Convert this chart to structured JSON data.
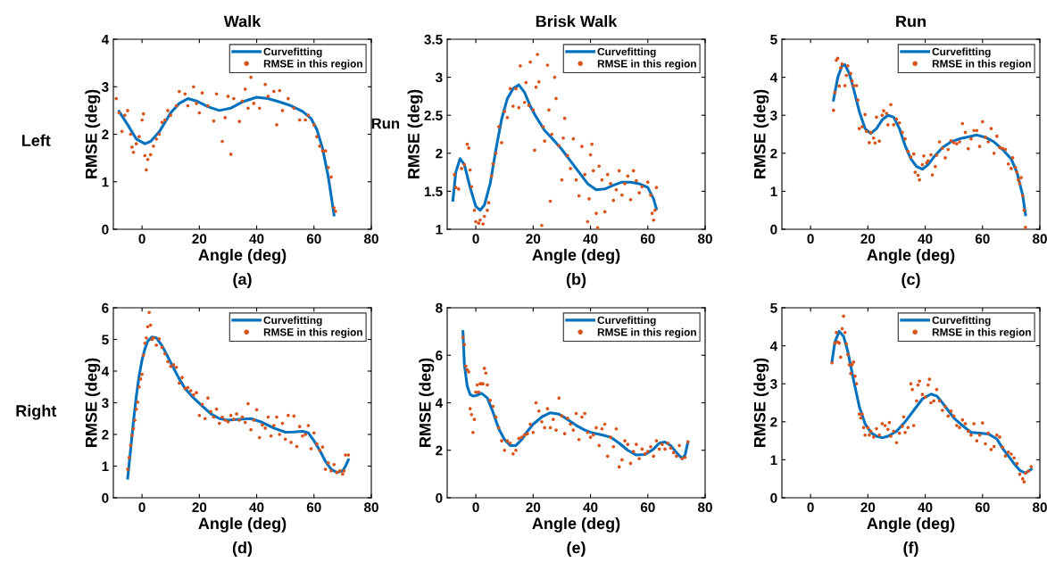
{
  "chart_data": [
    {
      "type": "scatter",
      "title": "Walk",
      "xlabel": "Angle (deg)",
      "ylabel": "RMSE (deg)",
      "xlim": [
        -10,
        80
      ],
      "xticks": [
        0,
        20,
        40,
        60,
        80
      ],
      "ylim": [
        0,
        4
      ],
      "yticks": [
        0,
        1,
        2,
        3,
        4
      ],
      "legend": "top right",
      "grid": false,
      "annotations": [
        "Left",
        "Run",
        "(a)"
      ],
      "series": [
        {
          "name": "Curvefitting",
          "type": "line",
          "color": "#0072bd",
          "marker": "none",
          "line_style": "solid",
          "x": [
            -8,
            -5,
            -2,
            1,
            3,
            6,
            10,
            13,
            16,
            19,
            23,
            27,
            31,
            35,
            40,
            44,
            48,
            52,
            56,
            59,
            61,
            63,
            65,
            67
          ],
          "values": [
            2.48,
            2.2,
            1.9,
            1.8,
            1.85,
            2.05,
            2.45,
            2.65,
            2.75,
            2.7,
            2.58,
            2.5,
            2.55,
            2.68,
            2.78,
            2.75,
            2.68,
            2.6,
            2.48,
            2.33,
            2.1,
            1.7,
            1.1,
            0.3
          ]
        },
        {
          "name": "RMSE in this region",
          "type": "scatter",
          "color": "#d95319",
          "marker": "circle",
          "x": [
            -9,
            -8,
            -7,
            -6,
            -5,
            -4,
            -3.5,
            -3,
            -2,
            -1,
            0,
            0.5,
            1,
            1.5,
            2,
            3,
            4,
            5,
            6,
            7,
            8,
            9,
            10,
            12,
            13,
            15,
            16,
            18,
            19,
            20,
            21,
            23,
            25,
            26,
            28,
            29,
            30,
            31,
            32,
            34,
            35,
            36,
            37,
            38,
            39,
            41,
            43,
            44,
            46,
            47,
            48,
            49,
            51,
            53,
            55,
            57,
            58,
            60,
            61,
            62,
            63,
            64,
            65,
            66,
            67,
            67.5
          ],
          "values": [
            2.75,
            2.45,
            2.06,
            2.4,
            2.5,
            2.0,
            1.73,
            1.62,
            1.8,
            1.95,
            2.3,
            2.43,
            1.55,
            1.25,
            1.47,
            1.57,
            1.75,
            1.9,
            2.0,
            2.25,
            2.3,
            2.5,
            2.4,
            2.6,
            2.9,
            2.85,
            2.6,
            3.0,
            2.65,
            2.45,
            2.87,
            2.6,
            2.28,
            2.85,
            1.85,
            2.35,
            2.8,
            1.58,
            2.75,
            2.27,
            2.7,
            2.95,
            2.55,
            3.2,
            2.65,
            2.55,
            3.05,
            2.8,
            2.9,
            2.2,
            2.92,
            2.5,
            2.75,
            2.55,
            2.3,
            2.3,
            2.4,
            2.2,
            1.95,
            1.75,
            1.65,
            1.65,
            1.3,
            1.1,
            0.45,
            0.38
          ]
        }
      ]
    },
    {
      "type": "scatter",
      "title": "Brisk Walk",
      "xlabel": "Angle (deg)",
      "ylabel": "RMSE (deg)",
      "xlim": [
        -10,
        80
      ],
      "xticks": [
        0,
        20,
        40,
        60,
        80
      ],
      "ylim": [
        1,
        3.5
      ],
      "yticks": [
        1,
        1.5,
        2,
        2.5,
        3,
        3.5
      ],
      "legend": "top right",
      "grid": false,
      "annotations": [
        "(b)"
      ],
      "series": [
        {
          "name": "Curvefitting",
          "type": "line",
          "color": "#0072bd",
          "marker": "none",
          "line_style": "solid",
          "x": [
            -8,
            -7,
            -5.5,
            -4,
            -2,
            0,
            1.5,
            3,
            5,
            7,
            9,
            11,
            13,
            15,
            17,
            19,
            21,
            24,
            27,
            30,
            33,
            36,
            39,
            42,
            45,
            48,
            51,
            54,
            57,
            60,
            62,
            63
          ],
          "values": [
            1.38,
            1.75,
            1.93,
            1.85,
            1.55,
            1.3,
            1.25,
            1.32,
            1.6,
            2.05,
            2.45,
            2.72,
            2.85,
            2.9,
            2.8,
            2.62,
            2.48,
            2.3,
            2.18,
            2.05,
            1.9,
            1.75,
            1.6,
            1.52,
            1.53,
            1.58,
            1.62,
            1.62,
            1.6,
            1.55,
            1.4,
            1.27
          ]
        },
        {
          "name": "RMSE in this region",
          "type": "scatter",
          "color": "#d95319",
          "marker": "circle",
          "x": [
            -7.5,
            -7,
            -6,
            -5,
            -4,
            -3,
            -2.5,
            -2,
            -1.5,
            -0.5,
            0,
            1,
            1.5,
            2.5,
            3,
            4,
            4.5,
            5.5,
            6,
            7,
            8,
            9,
            10,
            11,
            12,
            13,
            14,
            15,
            15.5,
            17,
            17.5,
            18.5,
            19,
            20,
            20.5,
            21,
            21.5,
            22,
            23,
            23.5,
            24,
            25,
            25.5,
            26,
            26.5,
            27.5,
            28,
            29,
            30,
            30.5,
            31,
            32,
            33,
            34,
            35,
            36,
            37,
            38,
            39,
            39.5,
            40,
            40.5,
            41,
            42,
            42.5,
            43,
            44,
            45,
            46,
            47,
            48,
            49,
            50,
            51,
            52,
            53,
            54,
            55,
            56,
            57,
            58,
            60,
            61,
            61.5,
            62,
            62.5,
            63
          ],
          "values": [
            1.72,
            1.55,
            1.53,
            1.8,
            1.85,
            2.12,
            2.07,
            1.78,
            1.56,
            1.25,
            1.1,
            1.08,
            1.12,
            1.07,
            1.17,
            1.25,
            1.35,
            1.7,
            1.86,
            2.0,
            2.35,
            2.14,
            2.55,
            2.47,
            2.85,
            2.62,
            2.85,
            2.6,
            3.15,
            2.67,
            2.93,
            2.63,
            3.2,
            2.57,
            2.04,
            2.87,
            3.3,
            2.94,
            1.05,
            2.35,
            2.16,
            3.16,
            2.57,
            1.37,
            2.25,
            3.0,
            2.72,
            2.1,
            1.65,
            2.2,
            2.46,
            1.97,
            1.8,
            2.19,
            1.65,
            1.44,
            2.09,
            1.72,
            1.1,
            1.4,
            1.98,
            2.12,
            1.77,
            1.21,
            1.02,
            1.83,
            1.65,
            1.23,
            1.72,
            1.6,
            1.38,
            1.52,
            1.77,
            1.45,
            1.6,
            1.7,
            1.39,
            1.77,
            1.64,
            1.48,
            1.56,
            1.62,
            1.45,
            1.21,
            1.12,
            1.25,
            1.55
          ]
        }
      ]
    },
    {
      "type": "scatter",
      "title": "Run",
      "xlabel": "Angle (deg)",
      "ylabel": "RMSE (deg)",
      "xlim": [
        -10,
        80
      ],
      "xticks": [
        0,
        20,
        40,
        60,
        80
      ],
      "ylim": [
        0,
        5
      ],
      "yticks": [
        0,
        1,
        2,
        3,
        4,
        5
      ],
      "legend": "top right",
      "grid": false,
      "annotations": [
        "(c)"
      ],
      "series": [
        {
          "name": "Curvefitting",
          "type": "line",
          "color": "#0072bd",
          "marker": "none",
          "line_style": "solid",
          "x": [
            8,
            9.5,
            11,
            12,
            13.5,
            15,
            17,
            19,
            21,
            23,
            25,
            27,
            29,
            31,
            33,
            35,
            37,
            39,
            41,
            43,
            46,
            49,
            52,
            55,
            58,
            61,
            64,
            67,
            70,
            72,
            74,
            75
          ],
          "values": [
            3.4,
            4.0,
            4.3,
            4.33,
            4.1,
            3.7,
            3.1,
            2.65,
            2.52,
            2.65,
            2.88,
            3.0,
            2.95,
            2.65,
            2.2,
            1.85,
            1.65,
            1.58,
            1.7,
            1.9,
            2.15,
            2.3,
            2.38,
            2.43,
            2.48,
            2.42,
            2.3,
            2.1,
            1.85,
            1.5,
            0.9,
            0.38
          ]
        },
        {
          "name": "RMSE in this region",
          "type": "scatter",
          "color": "#d95319",
          "marker": "circle",
          "x": [
            8,
            8.5,
            9,
            9.5,
            10,
            10.5,
            11,
            12,
            12.5,
            13,
            14,
            14.5,
            15,
            16,
            16.5,
            17,
            18,
            19,
            19.5,
            20.5,
            21,
            22,
            22.5,
            23,
            24,
            25,
            25.5,
            26.5,
            27,
            28,
            29,
            30,
            31,
            32,
            33,
            34,
            35,
            36,
            36.5,
            37.5,
            38,
            39,
            39.5,
            40.5,
            41,
            42,
            42.5,
            43.5,
            44,
            45,
            46,
            47,
            48,
            49,
            50,
            51,
            52,
            53,
            54,
            55,
            56,
            57,
            58,
            59,
            60,
            61,
            62,
            63,
            64,
            65,
            66,
            67,
            68,
            69,
            70,
            70.5,
            71.5,
            72,
            72.5,
            73,
            73.5,
            74,
            74.5,
            75
          ],
          "values": [
            3.13,
            3.6,
            4.45,
            4.5,
            3.77,
            4.25,
            4.35,
            3.78,
            4.05,
            4.3,
            4.1,
            3.9,
            3.78,
            3.78,
            3.4,
            2.65,
            2.7,
            3.02,
            2.58,
            2.28,
            2.55,
            2.4,
            2.27,
            2.95,
            2.32,
            3.0,
            3.12,
            3.05,
            2.75,
            3.28,
            2.75,
            2.9,
            2.8,
            2.55,
            2.38,
            2.05,
            1.9,
            1.98,
            1.5,
            1.42,
            1.3,
            1.7,
            1.93,
            1.75,
            1.8,
            1.96,
            1.43,
            1.65,
            1.95,
            2.3,
            2.13,
            1.88,
            2.1,
            2.33,
            2.28,
            2.25,
            2.3,
            2.78,
            2.55,
            2.12,
            2.38,
            2.6,
            2.6,
            2.18,
            2.83,
            2.42,
            2.3,
            2.65,
            2.0,
            2.45,
            2.15,
            2.13,
            2.1,
            1.72,
            1.6,
            1.88,
            1.63,
            1.5,
            1.3,
            1.2,
            1.36,
            0.88,
            0.5,
            0.05
          ]
        }
      ]
    },
    {
      "type": "scatter",
      "xlabel": "Angle (deg)",
      "ylabel": "RMSE (deg)",
      "xlim": [
        -10,
        80
      ],
      "xticks": [
        0,
        20,
        40,
        60,
        80
      ],
      "ylim": [
        0,
        6
      ],
      "yticks": [
        0,
        1,
        2,
        3,
        4,
        5,
        6
      ],
      "legend": "top right",
      "grid": false,
      "annotations": [
        "Right",
        "(d)"
      ],
      "series": [
        {
          "name": "Curvefitting",
          "type": "line",
          "color": "#0072bd",
          "marker": "none",
          "line_style": "solid",
          "x": [
            -5,
            -4,
            -3,
            -2,
            -1,
            0,
            1,
            2,
            3.5,
            5,
            7,
            9,
            11,
            13,
            15,
            18,
            21,
            24,
            27,
            30,
            34,
            38,
            42,
            46,
            50,
            53,
            56,
            58,
            60,
            62,
            64,
            66,
            68,
            70,
            71,
            72
          ],
          "values": [
            0.62,
            1.5,
            2.4,
            3.2,
            3.85,
            4.35,
            4.7,
            4.95,
            5.08,
            5.05,
            4.8,
            4.45,
            4.1,
            3.75,
            3.45,
            3.15,
            2.9,
            2.65,
            2.5,
            2.45,
            2.48,
            2.5,
            2.38,
            2.2,
            2.07,
            2.08,
            2.1,
            2.05,
            1.8,
            1.5,
            1.15,
            0.9,
            0.8,
            0.85,
            1.0,
            1.2
          ]
        },
        {
          "name": "RMSE in this region",
          "type": "scatter",
          "color": "#d95319",
          "marker": "circle",
          "x": [
            -5,
            -4.5,
            -4,
            -3.5,
            -3,
            -2.5,
            -2,
            -1.5,
            -1,
            -0.5,
            0,
            0.5,
            1,
            1.5,
            2,
            2.5,
            3,
            3.5,
            4,
            5,
            6,
            7,
            8,
            9,
            10,
            11,
            12,
            13,
            14,
            15,
            16,
            17,
            18,
            19,
            20,
            21,
            22,
            23,
            24,
            25,
            26,
            27,
            28,
            29,
            30,
            31,
            32,
            33,
            34,
            35,
            36,
            37,
            38,
            39,
            40,
            41,
            42,
            43,
            44,
            45,
            46,
            47,
            48,
            49,
            50,
            51,
            52,
            53,
            54,
            55,
            56,
            57,
            58,
            59,
            60,
            61,
            62,
            63,
            64,
            65,
            66,
            67,
            68,
            69,
            70,
            70.5,
            71,
            72
          ],
          "values": [
            0.9,
            1.27,
            1.65,
            1.97,
            2.18,
            2.45,
            2.8,
            3.02,
            3.5,
            3.75,
            3.9,
            4.5,
            4.88,
            5.05,
            5.4,
            5.85,
            5.45,
            5.0,
            5.05,
            4.82,
            5.02,
            4.75,
            4.55,
            4.3,
            4.15,
            4.2,
            4.12,
            3.62,
            3.8,
            3.45,
            3.48,
            3.38,
            3.25,
            3.32,
            2.6,
            2.95,
            2.5,
            3.15,
            2.72,
            2.55,
            2.8,
            2.35,
            2.55,
            2.45,
            2.4,
            2.6,
            2.48,
            2.65,
            2.45,
            2.55,
            2.38,
            2.97,
            2.15,
            2.45,
            2.78,
            1.9,
            2.3,
            2.2,
            2.55,
            1.95,
            2.28,
            2.55,
            2.0,
            2.35,
            1.85,
            2.6,
            1.75,
            2.58,
            1.62,
            2.25,
            1.95,
            2.0,
            2.28,
            1.55,
            2.05,
            1.7,
            1.5,
            1.6,
            0.9,
            1.1,
            0.85,
            1.05,
            0.8,
            0.85,
            0.75,
            0.85,
            1.35,
            1.35
          ]
        }
      ]
    },
    {
      "type": "scatter",
      "xlabel": "Angle (deg)",
      "ylabel": "RMSE (deg)",
      "xlim": [
        -10,
        80
      ],
      "xticks": [
        0,
        20,
        40,
        60,
        80
      ],
      "ylim": [
        0,
        8
      ],
      "yticks": [
        0,
        2,
        4,
        6,
        8
      ],
      "legend": "top right",
      "grid": false,
      "annotations": [
        "(e)"
      ],
      "series": [
        {
          "name": "Curvefitting",
          "type": "line",
          "color": "#0072bd",
          "marker": "none",
          "line_style": "solid",
          "x": [
            -4.5,
            -4,
            -3,
            -2,
            -1,
            0,
            2,
            4,
            6,
            8,
            10,
            12,
            14,
            16,
            18,
            20,
            23,
            26,
            29,
            32,
            35,
            38,
            41,
            44,
            47,
            50,
            53,
            56,
            59,
            62,
            64,
            66,
            68,
            70,
            72,
            73,
            74
          ],
          "values": [
            7.0,
            5.6,
            4.7,
            4.35,
            4.28,
            4.3,
            4.4,
            4.2,
            3.6,
            2.9,
            2.45,
            2.2,
            2.2,
            2.45,
            2.8,
            3.1,
            3.4,
            3.58,
            3.52,
            3.3,
            3.05,
            2.85,
            2.72,
            2.65,
            2.55,
            2.3,
            2.0,
            1.8,
            1.82,
            2.05,
            2.3,
            2.35,
            2.2,
            1.9,
            1.65,
            1.8,
            2.35
          ]
        },
        {
          "name": "RMSE in this region",
          "type": "scatter",
          "color": "#d95319",
          "marker": "circle",
          "x": [
            -4.5,
            -4,
            -3.5,
            -3,
            -2.5,
            -2,
            -1.5,
            -1,
            -0.5,
            0,
            0.5,
            1,
            1.5,
            2,
            2.5,
            3,
            3.5,
            4,
            5,
            6,
            7,
            8,
            9,
            10,
            11,
            12,
            13,
            14,
            15,
            16,
            17,
            18,
            19,
            20,
            21,
            22,
            23,
            24,
            25,
            26,
            27,
            28,
            29,
            30,
            31,
            32,
            33,
            34,
            35,
            36,
            37,
            38,
            39,
            40,
            41,
            42,
            43,
            44,
            45,
            46,
            47,
            48,
            49,
            50,
            51,
            52,
            53,
            54,
            55,
            56,
            57,
            58,
            59,
            60,
            61,
            62,
            63,
            64,
            65,
            66,
            67,
            68,
            69,
            70,
            71,
            72,
            73,
            74
          ],
          "values": [
            6.75,
            6.45,
            5.55,
            5.4,
            5.3,
            3.75,
            3.5,
            2.75,
            3.3,
            4.45,
            4.75,
            4.45,
            4.8,
            4.8,
            4.8,
            5.45,
            5.25,
            4.75,
            4.1,
            3.85,
            3.4,
            2.95,
            2.4,
            2.0,
            2.4,
            2.3,
            1.85,
            2.0,
            2.5,
            2.55,
            2.65,
            2.7,
            3.1,
            2.75,
            4.0,
            3.65,
            3.2,
            2.95,
            3.75,
            2.95,
            3.3,
            2.85,
            4.2,
            3.45,
            2.7,
            3.35,
            3.1,
            2.85,
            3.55,
            2.45,
            3.4,
            3.55,
            2.75,
            2.55,
            2.65,
            2.95,
            2.2,
            2.9,
            3.1,
            1.75,
            2.55,
            2.15,
            2.9,
            1.3,
            1.6,
            2.4,
            2.25,
            1.45,
            1.95,
            2.25,
            1.65,
            2.05,
            1.85,
            1.95,
            2.15,
            1.75,
            2.4,
            2.05,
            2.25,
            2.05,
            2.3,
            2.1,
            1.9,
            1.75,
            2.2,
            1.65,
            1.7,
            2.35
          ]
        }
      ]
    },
    {
      "type": "scatter",
      "xlabel": "Angle (deg)",
      "ylabel": "RMSE (deg)",
      "xlim": [
        -10,
        80
      ],
      "xticks": [
        0,
        20,
        40,
        60,
        80
      ],
      "ylim": [
        0,
        5
      ],
      "yticks": [
        0,
        1,
        2,
        3,
        4,
        5
      ],
      "legend": "top right",
      "grid": false,
      "annotations": [
        "(f)"
      ],
      "series": [
        {
          "name": "Curvefitting",
          "type": "line",
          "color": "#0072bd",
          "marker": "none",
          "line_style": "solid",
          "x": [
            7.5,
            8.5,
            10,
            11.5,
            13,
            15,
            17,
            19,
            21,
            23,
            25,
            27,
            30,
            33,
            36,
            39,
            42,
            44,
            46,
            48,
            50,
            53,
            56,
            59,
            62,
            65,
            67,
            69,
            71,
            73,
            75,
            77
          ],
          "values": [
            3.6,
            4.1,
            4.38,
            4.25,
            3.85,
            3.1,
            2.4,
            1.95,
            1.72,
            1.62,
            1.58,
            1.62,
            1.75,
            2.0,
            2.3,
            2.6,
            2.73,
            2.68,
            2.5,
            2.3,
            2.1,
            1.9,
            1.72,
            1.7,
            1.68,
            1.55,
            1.3,
            1.1,
            0.9,
            0.72,
            0.65,
            0.75
          ]
        },
        {
          "name": "RMSE in this region",
          "type": "scatter",
          "color": "#d95319",
          "marker": "circle",
          "x": [
            7.5,
            8.5,
            9,
            9.5,
            10,
            10.5,
            11,
            11.5,
            12,
            12.5,
            13,
            13.5,
            14,
            14.5,
            15,
            15.5,
            16,
            17,
            17.5,
            18,
            18.5,
            19,
            20,
            20.5,
            21,
            22,
            23,
            24,
            25,
            26,
            27,
            27.5,
            28,
            29,
            30,
            31,
            32,
            32.5,
            33,
            34,
            35,
            35.5,
            36,
            37,
            37.5,
            38,
            39,
            40,
            41,
            41.5,
            42,
            43,
            44,
            45,
            46,
            47,
            48,
            49,
            50,
            51,
            52,
            53,
            54,
            55,
            56,
            57,
            58,
            59,
            60,
            61,
            62,
            63,
            64,
            65,
            66,
            67,
            68,
            69,
            70,
            71,
            72,
            73,
            74,
            74.5,
            75,
            76,
            77
          ],
          "values": [
            3.55,
            4.07,
            4.35,
            4.1,
            4.07,
            3.7,
            4.45,
            4.78,
            4.35,
            4.05,
            3.77,
            3.5,
            3.27,
            3.5,
            3.57,
            3.2,
            3.0,
            2.2,
            2.1,
            2.2,
            1.85,
            1.65,
            1.85,
            1.65,
            1.75,
            1.6,
            1.82,
            1.65,
            1.95,
            1.9,
            1.8,
            1.98,
            1.62,
            1.75,
            1.45,
            1.7,
            1.88,
            2.13,
            1.72,
            1.85,
            3.0,
            2.85,
            1.9,
            2.55,
            2.97,
            3.07,
            2.72,
            2.65,
            2.97,
            3.12,
            2.5,
            2.55,
            2.85,
            2.55,
            2.3,
            2.4,
            2.15,
            2.28,
            2.15,
            1.9,
            1.85,
            2.05,
            1.95,
            1.75,
            1.65,
            1.95,
            1.5,
            1.65,
            1.97,
            1.42,
            1.7,
            1.27,
            1.35,
            1.65,
            1.6,
            1.33,
            1.1,
            1.2,
            1.15,
            1.05,
            0.9,
            0.62,
            0.5,
            0.42,
            0.65,
            0.7,
            0.82
          ]
        }
      ]
    }
  ]
}
